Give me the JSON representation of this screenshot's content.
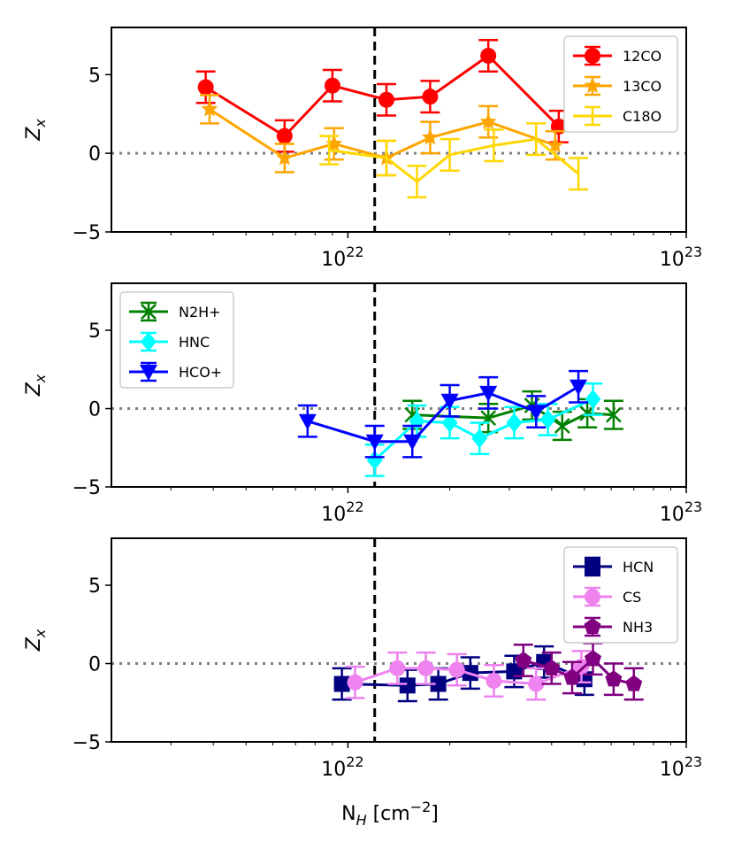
{
  "chart_data": [
    {
      "type": "scatter",
      "panel": "top",
      "xscale": "log",
      "xlim": [
        2e+21,
        1e+23
      ],
      "ylim": [
        -5,
        8
      ],
      "ylabel": "Z",
      "ylabel_sub": "x",
      "xticks": [
        {
          "base": "10",
          "exp": "22",
          "value": 1e+22
        },
        {
          "base": "10",
          "exp": "23",
          "value": 1e+23
        }
      ],
      "yticks": [
        {
          "label": "5",
          "value": 5
        },
        {
          "label": "0",
          "value": 0
        },
        {
          "label": "−5",
          "value": -5
        }
      ],
      "vline_x": 1.2e+22,
      "hline_y": 0,
      "legend_position": "top-right",
      "series": [
        {
          "name": "12CO",
          "color": "#ff0000",
          "marker": "circle",
          "points": [
            [
              3.8e+21,
              4.2,
              1.0
            ],
            [
              6.5e+21,
              1.1,
              1.0
            ],
            [
              9e+21,
              4.3,
              1.0
            ],
            [
              1.3e+22,
              3.4,
              1.0
            ],
            [
              1.75e+22,
              3.6,
              1.0
            ],
            [
              2.6e+22,
              6.2,
              1.0
            ],
            [
              4.2e+22,
              1.7,
              1.0
            ]
          ]
        },
        {
          "name": "13CO",
          "color": "#ffa500",
          "marker": "star",
          "points": [
            [
              3.9e+21,
              2.8,
              0.9
            ],
            [
              6.5e+21,
              -0.3,
              0.9
            ],
            [
              9.1e+21,
              0.6,
              1.0
            ],
            [
              1.3e+22,
              -0.3,
              1.1
            ],
            [
              1.75e+22,
              1.0,
              1.0
            ],
            [
              2.6e+22,
              2.0,
              1.0
            ],
            [
              4.1e+22,
              0.5,
              0.9
            ]
          ]
        },
        {
          "name": "C18O",
          "color": "#ffd700",
          "marker": "none",
          "points": [
            [
              8.8e+21,
              0.2,
              0.9
            ],
            [
              1.3e+22,
              -0.3,
              1.1
            ],
            [
              1.6e+22,
              -1.8,
              1.0
            ],
            [
              2e+22,
              -0.1,
              1.0
            ],
            [
              2.7e+22,
              0.5,
              1.0
            ],
            [
              3.6e+22,
              0.9,
              1.0
            ],
            [
              4.8e+22,
              -1.3,
              1.0
            ]
          ]
        }
      ]
    },
    {
      "type": "scatter",
      "panel": "middle",
      "xscale": "log",
      "xlim": [
        2e+21,
        1e+23
      ],
      "ylim": [
        -5,
        8
      ],
      "ylabel": "Z",
      "ylabel_sub": "x",
      "xticks": [
        {
          "base": "10",
          "exp": "22",
          "value": 1e+22
        },
        {
          "base": "10",
          "exp": "23",
          "value": 1e+23
        }
      ],
      "yticks": [
        {
          "label": "5",
          "value": 5
        },
        {
          "label": "0",
          "value": 0
        },
        {
          "label": "−5",
          "value": -5
        }
      ],
      "vline_x": 1.2e+22,
      "hline_y": 0,
      "legend_position": "top-left",
      "series": [
        {
          "name": "N2H+",
          "color": "#008000",
          "marker": "x",
          "points": [
            [
              1.55e+22,
              -0.4,
              0.9
            ],
            [
              2.6e+22,
              -0.6,
              0.9
            ],
            [
              3.5e+22,
              0.2,
              0.9
            ],
            [
              4.3e+22,
              -1.1,
              0.9
            ],
            [
              5.1e+22,
              -0.3,
              0.9
            ],
            [
              6.1e+22,
              -0.4,
              0.9
            ]
          ]
        },
        {
          "name": "HNC",
          "color": "#00ffff",
          "marker": "diamond",
          "points": [
            [
              1.2e+22,
              -3.3,
              1.0
            ],
            [
              1.6e+22,
              -0.8,
              1.0
            ],
            [
              2e+22,
              -0.9,
              1.0
            ],
            [
              2.45e+22,
              -1.9,
              1.0
            ],
            [
              3.1e+22,
              -0.9,
              1.0
            ],
            [
              3.9e+22,
              -0.7,
              1.0
            ],
            [
              5.3e+22,
              0.6,
              1.0
            ]
          ]
        },
        {
          "name": "HCO+",
          "color": "#0000ff",
          "marker": "triangle-down",
          "points": [
            [
              7.6e+21,
              -0.8,
              1.0
            ],
            [
              1.2e+22,
              -2.1,
              1.0
            ],
            [
              1.55e+22,
              -2.1,
              1.0
            ],
            [
              2e+22,
              0.5,
              1.0
            ],
            [
              2.6e+22,
              1.0,
              1.0
            ],
            [
              3.6e+22,
              -0.2,
              1.0
            ],
            [
              4.8e+22,
              1.4,
              1.0
            ]
          ]
        }
      ]
    },
    {
      "type": "scatter",
      "panel": "bottom",
      "xscale": "log",
      "xlim": [
        2e+21,
        1e+23
      ],
      "ylim": [
        -5,
        8
      ],
      "ylabel": "Z",
      "ylabel_sub": "x",
      "xlabel": "N",
      "xlabel_sub": "H",
      "xlabel_unit": " [cm",
      "xlabel_unit_sup": "−2",
      "xlabel_unit_end": "]",
      "xticks": [
        {
          "base": "10",
          "exp": "22",
          "value": 1e+22
        },
        {
          "base": "10",
          "exp": "23",
          "value": 1e+23
        }
      ],
      "yticks": [
        {
          "label": "5",
          "value": 5
        },
        {
          "label": "0",
          "value": 0
        },
        {
          "label": "−5",
          "value": -5
        }
      ],
      "vline_x": 1.2e+22,
      "hline_y": 0,
      "legend_position": "top-right",
      "series": [
        {
          "name": "HCN",
          "color": "#000080",
          "marker": "square",
          "points": [
            [
              9.6e+21,
              -1.3,
              1.0
            ],
            [
              1.5e+22,
              -1.4,
              1.0
            ],
            [
              1.85e+22,
              -1.3,
              1.0
            ],
            [
              2.3e+22,
              -0.6,
              1.0
            ],
            [
              3.1e+22,
              -0.5,
              1.0
            ],
            [
              3.8e+22,
              0.1,
              1.0
            ],
            [
              5e+22,
              -1.0,
              1.0
            ]
          ]
        },
        {
          "name": "CS",
          "color": "#ee82ee",
          "marker": "circle",
          "points": [
            [
              1.05e+22,
              -1.2,
              1.0
            ],
            [
              1.4e+22,
              -0.3,
              1.0
            ],
            [
              1.7e+22,
              -0.3,
              1.0
            ],
            [
              2.1e+22,
              -0.4,
              1.0
            ],
            [
              2.7e+22,
              -1.1,
              1.0
            ],
            [
              3.6e+22,
              -1.3,
              1.0
            ],
            [
              4.9e+22,
              -0.2,
              1.0
            ]
          ]
        },
        {
          "name": "NH3",
          "color": "#800080",
          "marker": "pentagon",
          "points": [
            [
              3.3e+22,
              0.2,
              1.0
            ],
            [
              4e+22,
              -0.3,
              1.0
            ],
            [
              4.6e+22,
              -0.9,
              1.0
            ],
            [
              5.3e+22,
              0.3,
              1.0
            ],
            [
              6.1e+22,
              -1.0,
              1.0
            ],
            [
              7e+22,
              -1.3,
              1.0
            ]
          ]
        }
      ]
    }
  ]
}
